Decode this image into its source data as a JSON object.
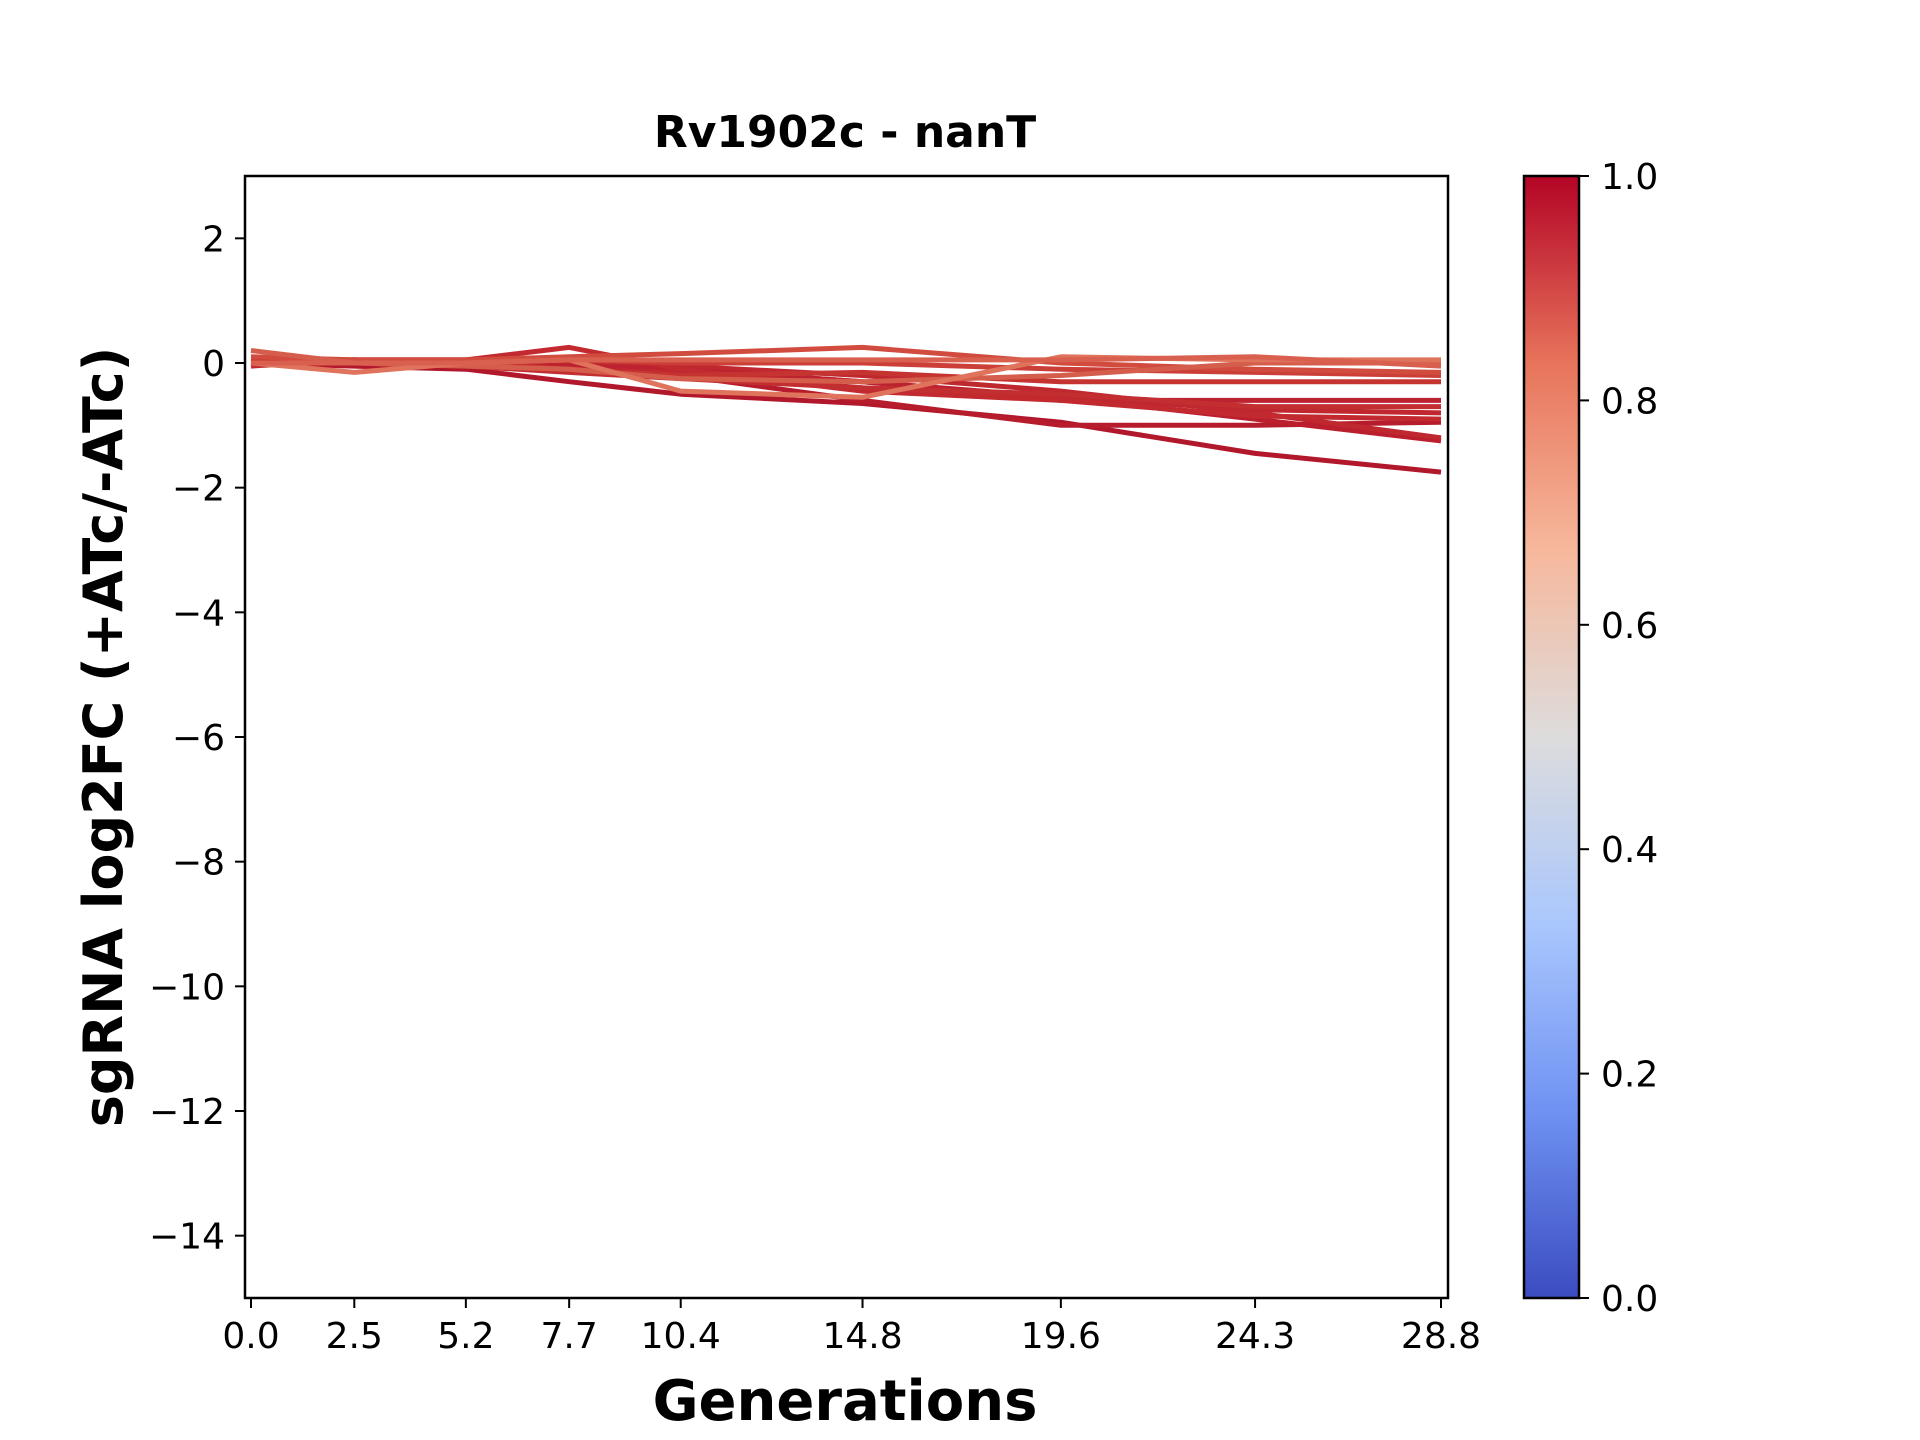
{
  "chart_data": {
    "type": "line",
    "title": "Rv1902c - nanT",
    "xlabel": "Generations",
    "ylabel": "sgRNA log2FC (+ATc/-ATc)",
    "x": [
      0.0,
      2.5,
      5.2,
      7.7,
      10.4,
      14.8,
      19.6,
      24.3,
      28.8
    ],
    "x_tick_labels": [
      "0.0",
      "2.5",
      "5.2",
      "7.7",
      "10.4",
      "14.8",
      "19.6",
      "24.3",
      "28.8"
    ],
    "ylim": [
      -15,
      3
    ],
    "y_ticks": [
      2,
      0,
      -2,
      -4,
      -6,
      -8,
      -10,
      -12,
      -14
    ],
    "y_tick_labels": [
      "2",
      "0",
      "−2",
      "−4",
      "−6",
      "−8",
      "−10",
      "−12",
      "−14"
    ],
    "grid": false,
    "colorbar": {
      "colormap": "coolwarm",
      "range": [
        0.0,
        1.0
      ],
      "tick_labels": [
        "1.0",
        "0.8",
        "0.6",
        "0.4",
        "0.2",
        "0.0"
      ],
      "colors": [
        "#3b4cc0",
        "#6f92f3",
        "#aac7fd",
        "#dddcdc",
        "#f7b89c",
        "#e7745b",
        "#b40426"
      ]
    },
    "series": [
      {
        "color": "#b2182b",
        "values": [
          0.0,
          -0.05,
          -0.1,
          -0.3,
          -0.5,
          -0.65,
          -0.95,
          -1.45,
          -1.75
        ]
      },
      {
        "color": "#b71c2c",
        "values": [
          0.05,
          0.05,
          0.0,
          -0.05,
          -0.2,
          -0.6,
          -1.0,
          -1.0,
          -0.95
        ]
      },
      {
        "color": "#bb1f2e",
        "values": [
          0.0,
          0.0,
          -0.05,
          0.0,
          -0.1,
          -0.3,
          -0.55,
          -0.9,
          -1.25
        ]
      },
      {
        "color": "#c0282f",
        "values": [
          0.05,
          0.05,
          0.05,
          0.0,
          -0.05,
          -0.2,
          -0.45,
          -0.8,
          -1.2
        ]
      },
      {
        "color": "#bd2230",
        "values": [
          0.0,
          0.05,
          0.0,
          -0.05,
          -0.1,
          -0.3,
          -0.6,
          -0.6,
          -0.6
        ]
      },
      {
        "color": "#c0272f",
        "values": [
          0.0,
          0.0,
          -0.05,
          -0.1,
          -0.15,
          -0.4,
          -0.55,
          -0.75,
          -0.8
        ]
      },
      {
        "color": "#c22a30",
        "values": [
          -0.05,
          0.05,
          0.05,
          0.25,
          -0.1,
          -0.45,
          -0.6,
          -0.85,
          -0.9
        ]
      },
      {
        "color": "#c32e31",
        "values": [
          0.0,
          0.05,
          -0.05,
          -0.15,
          -0.25,
          -0.4,
          -0.5,
          -0.7,
          -0.7
        ]
      },
      {
        "color": "#c63432",
        "values": [
          0.05,
          0.0,
          0.0,
          -0.1,
          -0.2,
          -0.15,
          -0.3,
          -0.3,
          -0.3
        ]
      },
      {
        "color": "#cc3f39",
        "values": [
          0.0,
          0.0,
          0.0,
          0.05,
          0.0,
          0.0,
          -0.1,
          -0.15,
          -0.2
        ]
      },
      {
        "color": "#d14c3e",
        "values": [
          0.1,
          0.05,
          0.05,
          0.1,
          0.15,
          0.25,
          0.0,
          -0.1,
          -0.15
        ]
      },
      {
        "color": "#d55d4b",
        "values": [
          0.2,
          0.0,
          -0.05,
          -0.1,
          -0.25,
          -0.3,
          -0.2,
          0.0,
          0.0
        ]
      },
      {
        "color": "#e0735c",
        "values": [
          0.0,
          -0.15,
          0.0,
          0.05,
          -0.45,
          -0.55,
          0.1,
          0.05,
          0.05
        ]
      },
      {
        "color": "#d9604f",
        "values": [
          0.0,
          0.0,
          0.0,
          0.05,
          0.05,
          0.05,
          0.05,
          0.1,
          -0.05
        ]
      }
    ]
  }
}
